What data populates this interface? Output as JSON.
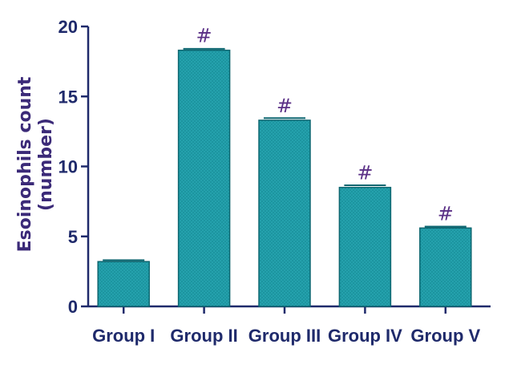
{
  "chart_data": {
    "type": "bar",
    "categories": [
      "Group I",
      "Group II",
      "Group III",
      "Group IV",
      "Group V"
    ],
    "values": [
      3.2,
      18.3,
      13.3,
      8.5,
      5.6
    ],
    "errors": [
      0.1,
      0.1,
      0.15,
      0.15,
      0.1
    ],
    "annotations": [
      "",
      "#",
      "#",
      "#",
      "#"
    ],
    "title": "",
    "xlabel": "",
    "ylabel_line1": "Esoinophils count",
    "ylabel_line2": "(number)",
    "ylim": [
      0,
      20
    ],
    "yticks": [
      0,
      5,
      10,
      15,
      20
    ],
    "grid": false,
    "colors": {
      "bar": "#1f9aa6",
      "bar_edge": "#0d6670",
      "axis": "#1f2a6b",
      "annotation": "#5a2f86"
    }
  }
}
